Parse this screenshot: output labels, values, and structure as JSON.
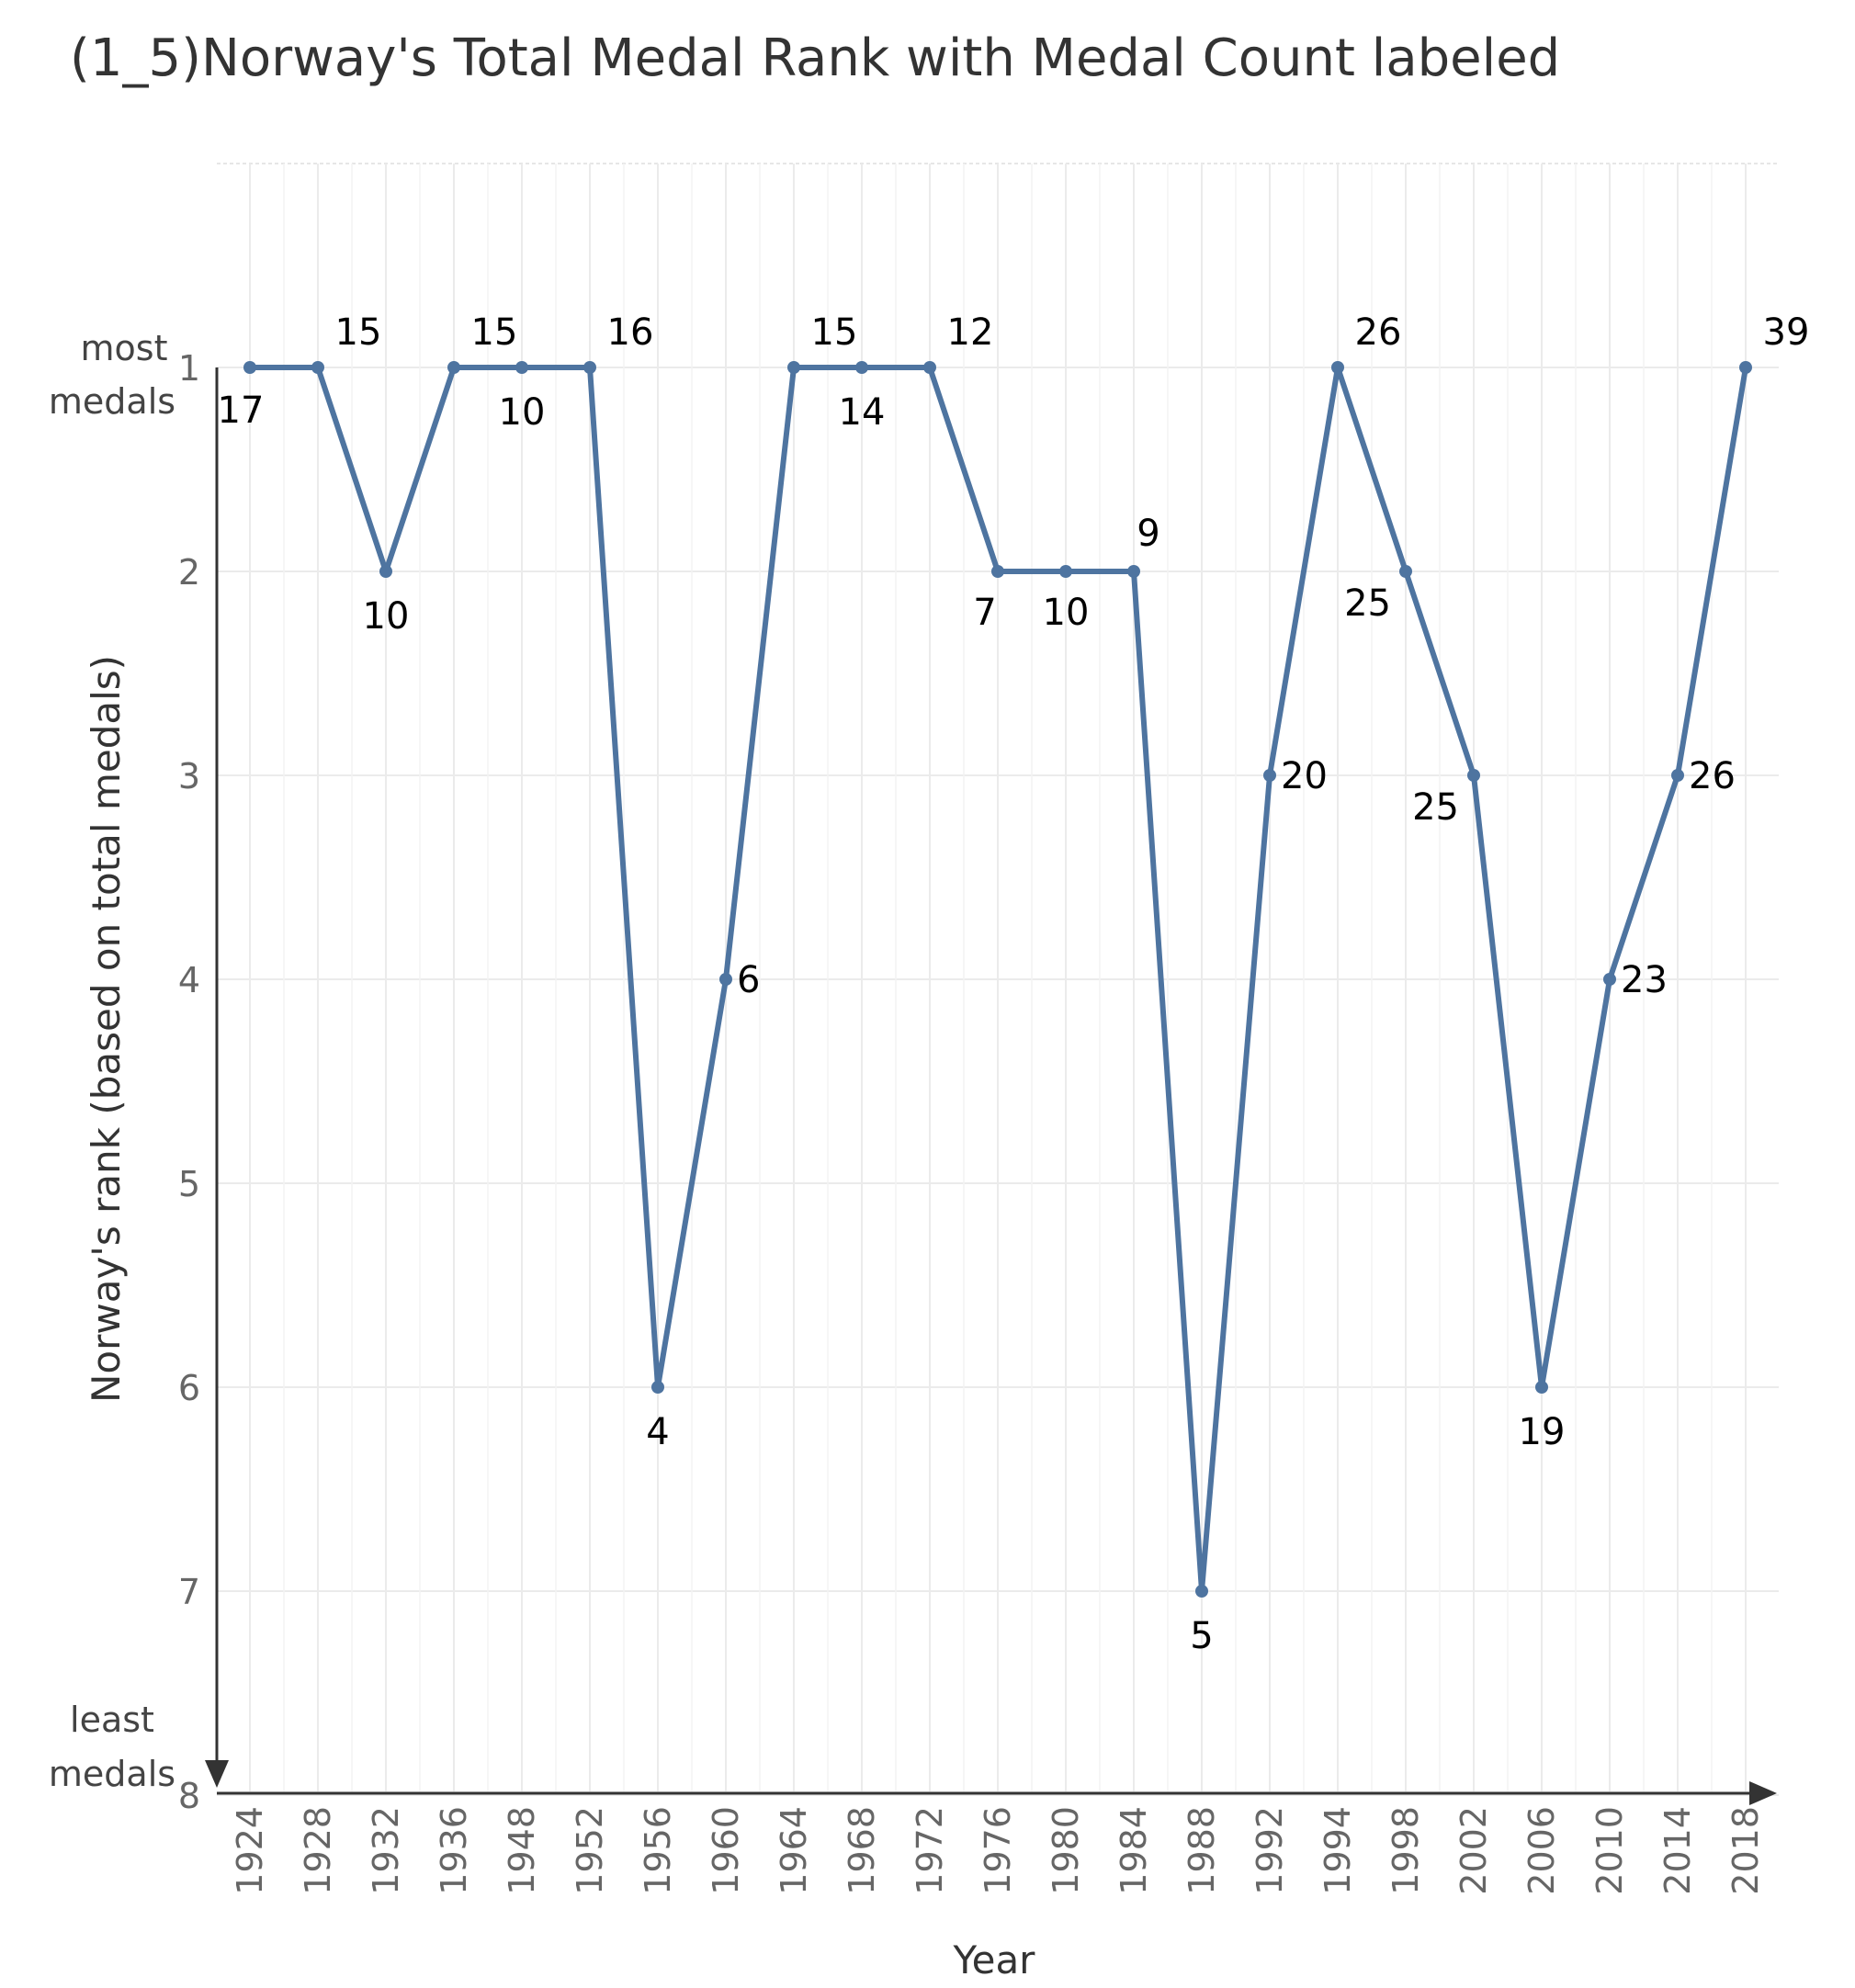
{
  "chart_data": {
    "type": "line",
    "title": "(1_5)Norway's Total Medal Rank with Medal Count labeled",
    "xlabel": "Year",
    "ylabel": "Norway's rank (based on total medals)",
    "y_top_label": [
      "most",
      "medals"
    ],
    "y_bottom_label": [
      "least",
      "medals"
    ],
    "y_reversed": true,
    "ylim": [
      1,
      8
    ],
    "y_ticks": [
      1,
      2,
      3,
      4,
      5,
      6,
      7,
      8
    ],
    "categories": [
      "1924",
      "1928",
      "1932",
      "1936",
      "1948",
      "1952",
      "1956",
      "1960",
      "1964",
      "1968",
      "1972",
      "1976",
      "1980",
      "1984",
      "1988",
      "1992",
      "1994",
      "1998",
      "2002",
      "2006",
      "2010",
      "2014",
      "2018"
    ],
    "ranks": [
      1,
      1,
      2,
      1,
      1,
      1,
      6,
      4,
      1,
      1,
      1,
      2,
      2,
      2,
      7,
      3,
      1,
      2,
      3,
      6,
      4,
      3,
      1
    ],
    "medal_counts": [
      "17",
      "15",
      "10",
      "15",
      "10",
      "16",
      "4",
      "6",
      "15",
      "14",
      "12",
      "7",
      "10",
      "9",
      "5",
      "20",
      "26",
      "25",
      "25",
      "19",
      "23",
      "26",
      "39"
    ],
    "line_color": "#4e74a0",
    "grid": true
  }
}
